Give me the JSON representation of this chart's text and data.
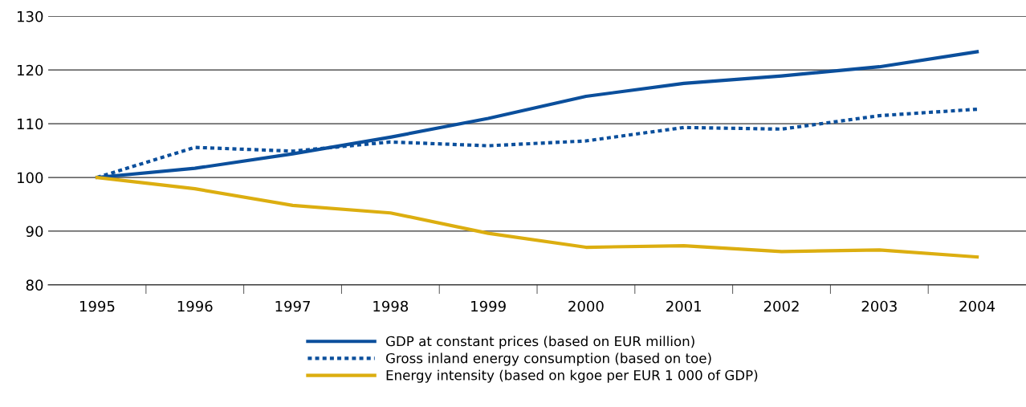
{
  "chart_data": {
    "type": "line",
    "categories": [
      "1995",
      "1996",
      "1997",
      "1998",
      "1999",
      "2000",
      "2001",
      "2002",
      "2003",
      "2004"
    ],
    "series": [
      {
        "name": "GDP at constant prices (based on EUR million)",
        "color": "#0b4f9c",
        "line_style": "solid",
        "values": [
          100,
          101.7,
          104.4,
          107.5,
          111.0,
          115.1,
          117.5,
          118.9,
          120.6,
          123.4
        ]
      },
      {
        "name": "Gross inland energy consumption (based on toe)",
        "color": "#0b4f9c",
        "line_style": "dotted",
        "values": [
          100,
          105.6,
          104.9,
          106.6,
          105.9,
          106.8,
          109.3,
          109.0,
          111.5,
          112.7
        ]
      },
      {
        "name": "Energy intensity (based on kgoe per EUR 1 000 of GDP)",
        "color": "#dcae10",
        "line_style": "solid",
        "values": [
          100,
          97.9,
          94.8,
          93.4,
          89.6,
          87.0,
          87.3,
          86.2,
          86.5,
          85.2
        ]
      }
    ],
    "ylim": [
      80,
      130
    ],
    "yticks": [
      80,
      90,
      100,
      110,
      120,
      130
    ],
    "grid": "y",
    "legend": "bottom",
    "marker": "none"
  }
}
